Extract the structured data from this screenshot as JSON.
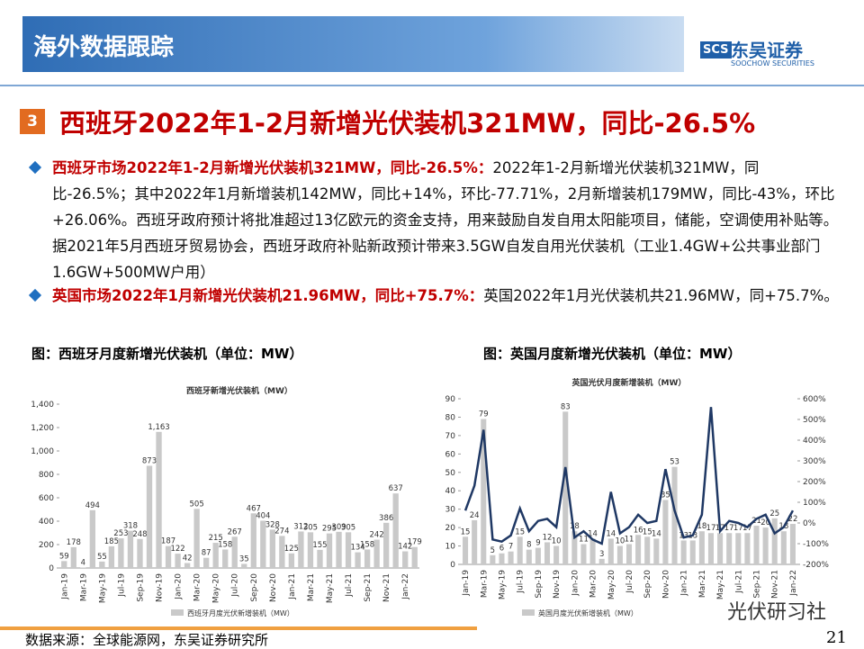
{
  "header": {
    "title": "海外数据跟踪",
    "logo_cn": "东吴证券",
    "logo_en": "SOOCHOW SECURITIES",
    "logo_mark": "SCS"
  },
  "section": {
    "number": "3",
    "title": "西班牙2022年1-2月新增光伏装机321MW，同比-26.5%"
  },
  "bullets": [
    {
      "lead": "西班牙市场2022年1-2月新增光伏装机321MW，同比-26.5%：",
      "text": "2022年1-2月新增光伏装机321MW，同比-26.5%；其中2022年1月新增装机142MW，同比+14%，环比-77.71%，2月新增装机179MW，同比-43%，环比+26.06%。西班牙政府预计将批准超过13亿欧元的资金支持，用来鼓励自发自用太阳能项目，储能，空调使用补贴等。据2021年5月西班牙贸易协会，西班牙政府补贴新政预计带来3.5GW自发自用光伏装机（工业1.4GW+公共事业部门1.6GW+500MW户用）"
    },
    {
      "lead": "英国市场2022年1月新增光伏装机21.96MW，同比+75.7%：",
      "text": "英国2022年1月光伏装机共21.96MW，同+75.7%。"
    }
  ],
  "figures": [
    {
      "caption": "图：西班牙月度新增光伏装机（单位：MW）"
    },
    {
      "caption": "图：英国月度新增光伏装机（单位：MW）"
    }
  ],
  "chart_data": [
    {
      "type": "bar",
      "title": "西班牙新增光伏装机（MW）",
      "categories": [
        "Jan-19",
        null,
        "Mar-19",
        null,
        "May-19",
        null,
        "Jul-19",
        null,
        "Sep-19",
        null,
        "Nov-19",
        null,
        "Jan-20",
        null,
        "Mar-20",
        null,
        "May-20",
        null,
        "Jul-20",
        null,
        "Sep-20",
        null,
        "Nov-20",
        null,
        "Jan-21",
        null,
        "Mar-21",
        null,
        "May-21",
        null,
        "Jul-21",
        null,
        "Sep-21",
        null,
        "Nov-21",
        null,
        "Jan-22",
        null
      ],
      "series": [
        {
          "name": "西班牙月度光伏新增装机（MW）",
          "color": "#c9c9c9",
          "values": [
            59,
            178,
            4,
            494,
            55,
            185,
            253,
            318,
            248,
            873,
            1163,
            187,
            122,
            42,
            505,
            87,
            215,
            158,
            267,
            35,
            467,
            404,
            328,
            274,
            125,
            312,
            305,
            155,
            295,
            309,
            305,
            134,
            158,
            242,
            386,
            637,
            142,
            179
          ],
          "value_labels": [
            "59",
            "178",
            "4",
            "494",
            "55",
            "185",
            "253",
            "318",
            "248",
            "873",
            "1,163",
            "187",
            "122",
            "42",
            "505",
            "87",
            "215",
            "158",
            "267",
            "35",
            "467",
            "404",
            "328",
            "274",
            "125",
            "312",
            "305",
            "155",
            "295",
            "309",
            "305",
            "134",
            "158",
            "242",
            "386",
            "637",
            "142",
            "179"
          ]
        }
      ],
      "ylim": [
        0,
        1400
      ],
      "yticks": [
        0,
        200,
        400,
        600,
        800,
        {
          "value": 1000,
          "label": "1,000"
        },
        {
          "value": 1200,
          "label": "1,200"
        },
        {
          "value": 1400,
          "label": "1,400"
        }
      ]
    },
    {
      "type": "bar",
      "title": "英国光伏月度新增装机（MW）",
      "categories": [
        "Jan-19",
        null,
        "Mar-19",
        null,
        "May-19",
        null,
        "Jul-19",
        null,
        "Sep-19",
        null,
        "Nov-19",
        null,
        "Jan-20",
        null,
        "Mar-20",
        null,
        "May-20",
        null,
        "Jul-20",
        null,
        "Sep-20",
        null,
        "Nov-20",
        null,
        "Jan-21",
        null,
        "Mar-21",
        null,
        "May-21",
        null,
        "Jul-21",
        null,
        "Sep-21",
        null,
        "Nov-21",
        null,
        "Jan-22"
      ],
      "series": [
        {
          "name": "英国月度光伏新增装机（MW）",
          "color": "#c9c9c9",
          "values": [
            15,
            24,
            79,
            5,
            6,
            7,
            15,
            8,
            9,
            12,
            10,
            83,
            18,
            11,
            14,
            3,
            14,
            10,
            11,
            16,
            15,
            14,
            35,
            53,
            13,
            13,
            18,
            17,
            17,
            17,
            17,
            17,
            21,
            20,
            25,
            18,
            22
          ]
        },
        {
          "type": "line",
          "axis": "y2",
          "color": "#1f3864",
          "values": [
            60,
            180,
            450,
            -80,
            -90,
            -60,
            70,
            -40,
            10,
            20,
            -20,
            270,
            -70,
            -40,
            -80,
            -100,
            150,
            -50,
            -20,
            40,
            0,
            10,
            260,
            60,
            -70,
            -60,
            40,
            560,
            -40,
            10,
            0,
            -20,
            20,
            40,
            -50,
            -20,
            60
          ]
        }
      ],
      "ylim": [
        0,
        90
      ],
      "yticks": [
        0,
        10,
        20,
        30,
        40,
        50,
        60,
        70,
        80,
        90
      ],
      "y2lim": [
        -200,
        600
      ],
      "y2ticks": [
        {
          "value": -200,
          "label": "-200%"
        },
        {
          "value": -100,
          "label": "-100%"
        },
        {
          "value": 0,
          "label": "0%"
        },
        {
          "value": 100,
          "label": "100%"
        },
        {
          "value": 200,
          "label": "200%"
        },
        {
          "value": 300,
          "label": "300%"
        },
        {
          "value": 400,
          "label": "400%"
        },
        {
          "value": 500,
          "label": "500%"
        },
        {
          "value": 600,
          "label": "600%"
        }
      ]
    }
  ],
  "footer": {
    "source": "数据来源：全球能源网，东吴证券研究所",
    "page": "21"
  },
  "watermark": "光伏研习社"
}
